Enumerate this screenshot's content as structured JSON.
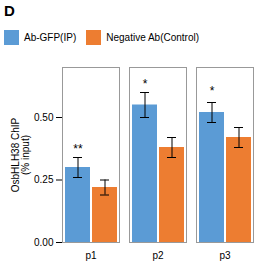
{
  "chart_data": {
    "type": "bar",
    "title": "D",
    "categories": [
      "p1",
      "p2",
      "p3"
    ],
    "series": [
      {
        "name": "Ab-GFP(IP)",
        "color": "#5b9bd5",
        "values": [
          0.3,
          0.55,
          0.52
        ],
        "errors": [
          0.04,
          0.05,
          0.04
        ]
      },
      {
        "name": "Negative Ab(Control)",
        "color": "#ed7d31",
        "values": [
          0.22,
          0.38,
          0.42
        ],
        "errors": [
          0.03,
          0.04,
          0.04
        ]
      }
    ],
    "ylabel": "OsbHLH38 ChIP\n(% input)",
    "ylim": [
      0,
      0.7
    ],
    "yticks": [
      {
        "value": 0,
        "label": "0.00"
      },
      0.25,
      {
        "value": 0.5,
        "label": "0.50"
      }
    ],
    "grid": false,
    "legend": "upper left",
    "annotations": [
      {
        "text": "**",
        "category": "p1",
        "series": "Ab-GFP(IP)",
        "y": 0.36
      },
      {
        "text": "*",
        "category": "p2",
        "series": "Ab-GFP(IP)",
        "y": 0.62
      },
      {
        "text": "*",
        "category": "p3",
        "series": "Ab-GFP(IP)",
        "y": 0.59
      }
    ]
  }
}
